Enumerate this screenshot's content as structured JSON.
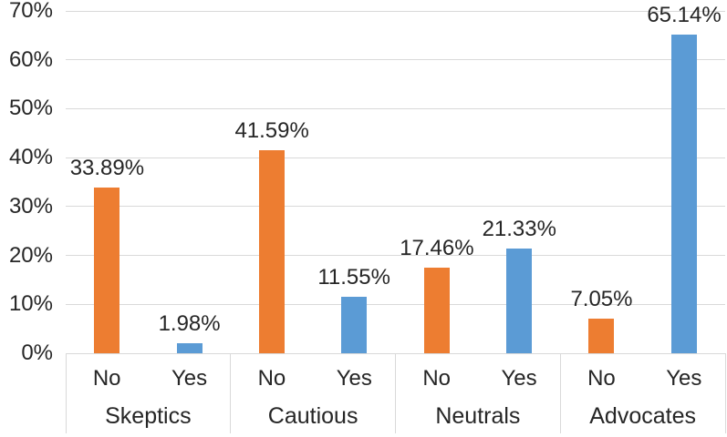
{
  "chart_data": {
    "type": "bar",
    "title": "",
    "xlabel": "",
    "ylabel": "",
    "groups": [
      "Skeptics",
      "Cautious",
      "Neutrals",
      "Advocates"
    ],
    "subcategories": [
      "No",
      "Yes"
    ],
    "series": [
      {
        "name": "No",
        "color": "#ED7D31",
        "values": [
          33.89,
          41.59,
          17.46,
          7.05
        ]
      },
      {
        "name": "Yes",
        "color": "#5B9BD5",
        "values": [
          1.98,
          11.55,
          21.33,
          65.14
        ]
      }
    ],
    "data_labels": [
      [
        "33.89%",
        "41.59%",
        "17.46%",
        "7.05%"
      ],
      [
        "1.98%",
        "11.55%",
        "21.33%",
        "65.14%"
      ]
    ],
    "y_axis": {
      "min": 0,
      "max": 70,
      "step": 10,
      "tick_labels": [
        "0%",
        "10%",
        "20%",
        "30%",
        "40%",
        "50%",
        "60%",
        "70%"
      ]
    },
    "grid": true,
    "legend_position": "none",
    "colors": {
      "grid": "#D9D9D9",
      "axis_text": "#262626",
      "label_text": "#262626",
      "background": "#FFFFFF"
    }
  }
}
